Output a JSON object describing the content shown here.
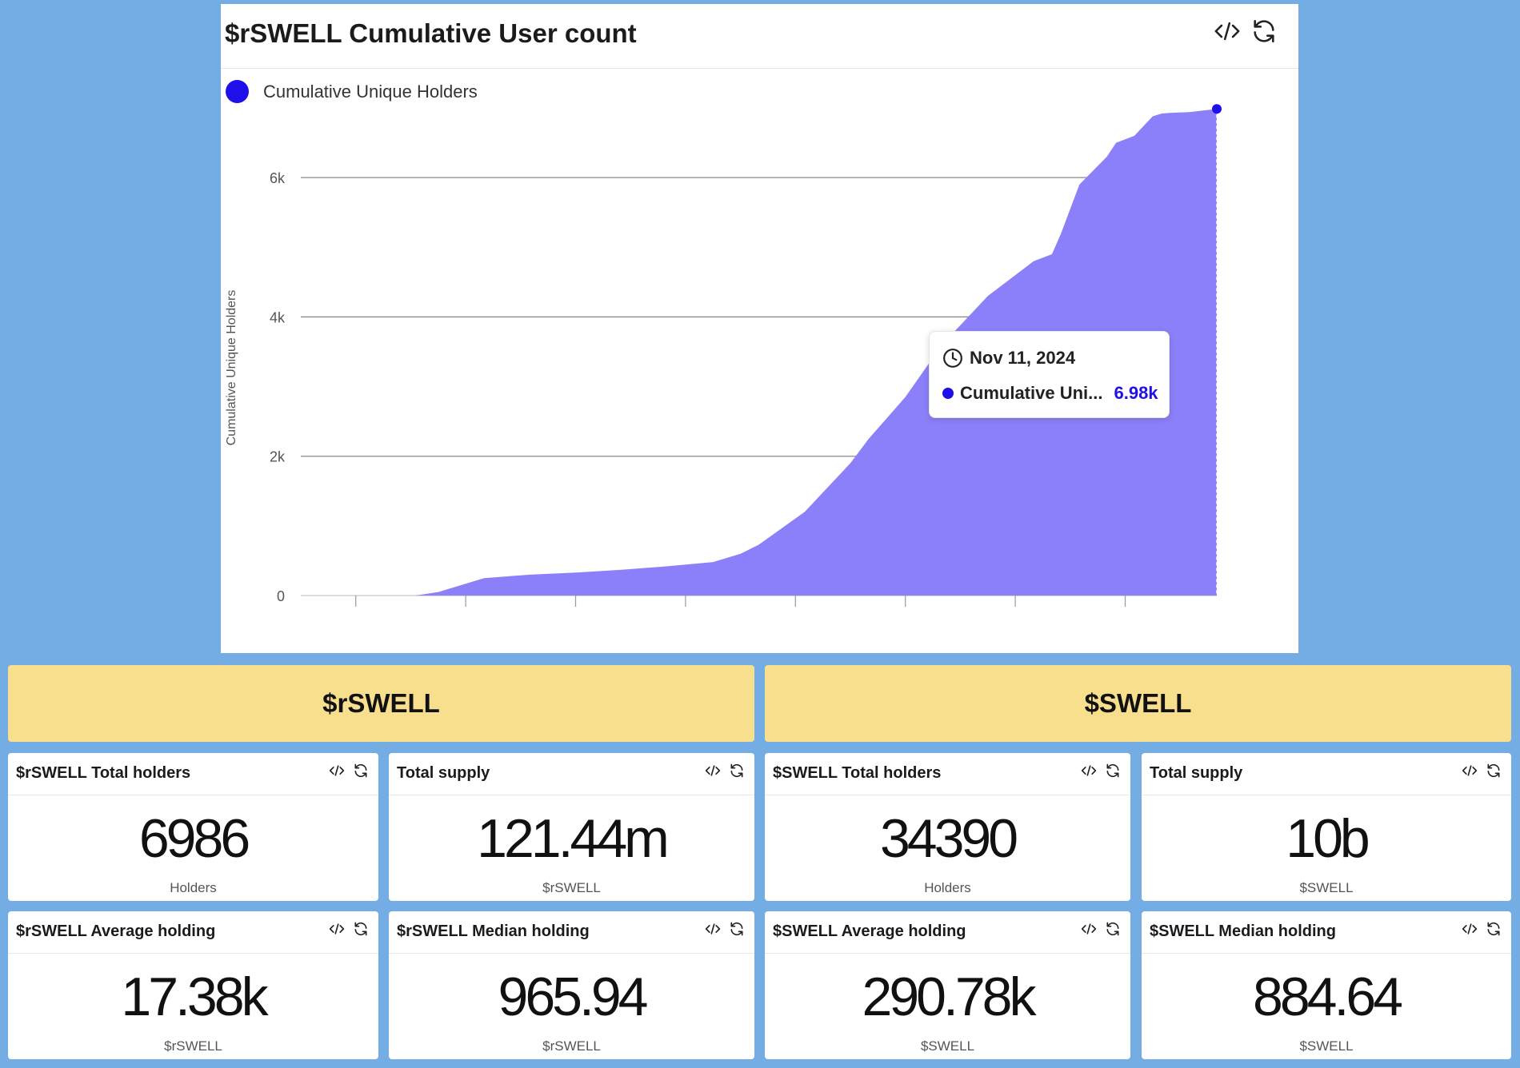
{
  "chart": {
    "title": "$rSWELL Cumulative User count",
    "legend_label": "Cumulative Unique Holders",
    "tooltip": {
      "date": "Nov 11, 2024",
      "series_label": "Cumulative Uni...",
      "value": "6.98k"
    }
  },
  "chart_data": {
    "type": "area",
    "title": "$rSWELL Cumulative User count",
    "xlabel": "",
    "ylabel": "Cumulative Unique Holders",
    "ylim": [
      0,
      7000
    ],
    "yticks": [
      0,
      2000,
      4000,
      6000
    ],
    "ytick_labels": [
      "0",
      "2k",
      "4k",
      "6k"
    ],
    "grid": true,
    "legend_position": "top-left",
    "series": [
      {
        "name": "Cumulative Unique Holders",
        "color": "#8b80f9",
        "marker_color": "#1f0fe8",
        "x": [
          0,
          0.1,
          0.125,
          0.15,
          0.2,
          0.25,
          0.3,
          0.35,
          0.4,
          0.45,
          0.48,
          0.5,
          0.55,
          0.6,
          0.62,
          0.65,
          0.66,
          0.7,
          0.75,
          0.8,
          0.82,
          0.83,
          0.85,
          0.88,
          0.89,
          0.9,
          0.91,
          0.93,
          0.94,
          0.95,
          0.97,
          1.0
        ],
        "y": [
          0,
          0,
          0,
          50,
          250,
          300,
          330,
          370,
          420,
          480,
          600,
          730,
          1200,
          1900,
          2250,
          2700,
          2850,
          3600,
          4300,
          4800,
          4900,
          5200,
          5900,
          6300,
          6500,
          6550,
          6600,
          6880,
          6920,
          6930,
          6940,
          6986
        ]
      }
    ]
  },
  "sections": {
    "left": "$rSWELL",
    "right": "$SWELL"
  },
  "cards": [
    {
      "title": "$rSWELL Total holders",
      "value": "6986",
      "unit": "Holders"
    },
    {
      "title": "Total supply",
      "value": "121.44m",
      "unit": "$rSWELL"
    },
    {
      "title": "$SWELL Total holders",
      "value": "34390",
      "unit": "Holders"
    },
    {
      "title": "Total supply",
      "value": "10b",
      "unit": "$SWELL"
    },
    {
      "title": "$rSWELL Average holding",
      "value": "17.38k",
      "unit": "$rSWELL"
    },
    {
      "title": "$rSWELL Median holding",
      "value": "965.94",
      "unit": "$rSWELL"
    },
    {
      "title": "$SWELL Average holding",
      "value": "290.78k",
      "unit": "$SWELL"
    },
    {
      "title": "$SWELL Median holding",
      "value": "884.64",
      "unit": "$SWELL"
    }
  ]
}
